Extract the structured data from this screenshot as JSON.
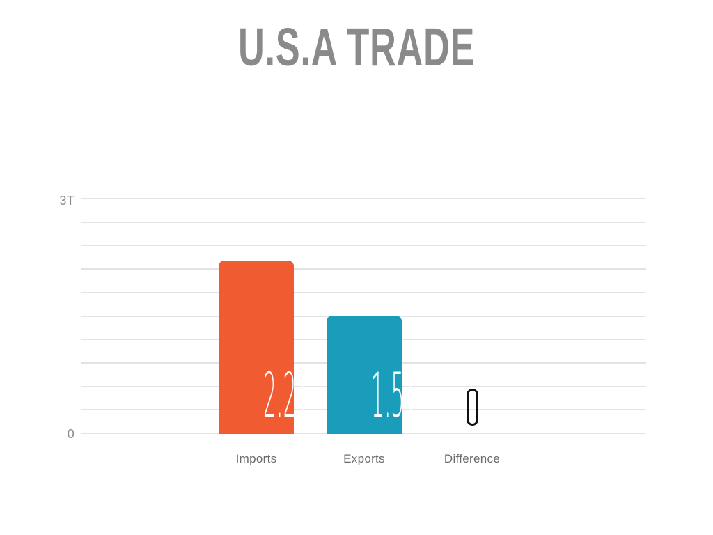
{
  "page": {
    "title": "U.S.A TRADE",
    "background_color": "#ffffff"
  },
  "chart_data": {
    "type": "bar",
    "title": "U.S.A TRADE",
    "categories": [
      "Imports",
      "Exports",
      "Difference"
    ],
    "bars": [
      {
        "category": "Imports",
        "value": 2.2,
        "value_label": "2.2T",
        "color": "#F15B32",
        "style": "filled"
      },
      {
        "category": "Exports",
        "value": 1.5,
        "value_label": "1.5T",
        "color": "#1A9DBB",
        "style": "filled"
      },
      {
        "category": "Difference",
        "value": 0,
        "value_label": "0",
        "color": "#111111",
        "style": "outline-glyph"
      }
    ],
    "unit": "T",
    "xlabel": "",
    "ylabel": "",
    "ylim": [
      0,
      3
    ],
    "yticks": [
      {
        "value": 3,
        "label": "3T"
      },
      {
        "value": 0,
        "label": "0"
      }
    ],
    "gridline_count": 11,
    "grid": "horizontal",
    "gridline_color": "#e3e3e3",
    "legend_position": "none"
  },
  "colors": {
    "title_text": "#8a8a8a",
    "axis_tick_text": "#8a8a8a",
    "category_text": "#6b6b6b",
    "bar_value_text": "#ffffff",
    "imports_bar": "#F15B32",
    "exports_bar": "#1A9DBB",
    "difference_outline": "#111111",
    "gridline": "#e3e3e3"
  }
}
